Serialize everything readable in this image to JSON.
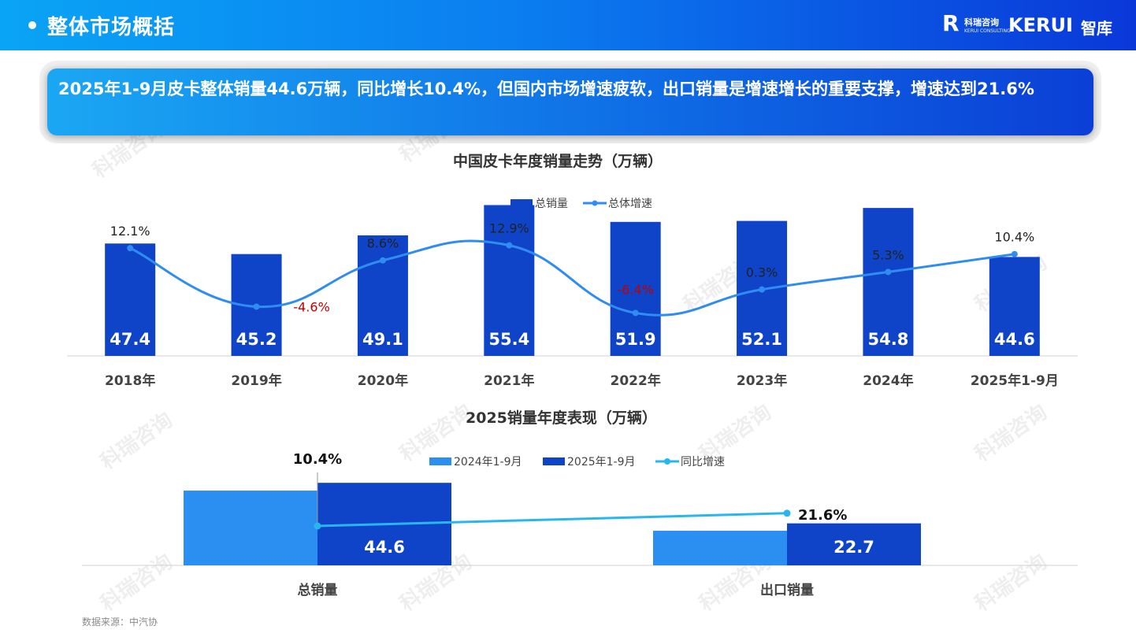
{
  "header": {
    "title": "整体市场概括"
  },
  "logo": {
    "cn": "科瑞咨询",
    "en": "KERUI CONSULTING",
    "brand": "KERUI",
    "suffix": "智库"
  },
  "banner": {
    "text": "2025年1-9月皮卡整体销量44.6万辆，同比增长10.4%，但国内市场增速疲软，出口销量是增速增长的重要支撑，增速达到21.6%"
  },
  "watermark": "科瑞咨询",
  "source": "数据来源：中汽协",
  "colors": {
    "bar_dark": "#0f44c8",
    "bar_light": "#2b8ff2",
    "line_blue": "#2f8cf0",
    "line_cyan": "#29b6ee",
    "negative": "#c00000"
  },
  "chart_data": [
    {
      "type": "bar",
      "title": "中国皮卡年度销量走势（万辆）",
      "categories": [
        "2018年",
        "2019年",
        "2020年",
        "2021年",
        "2022年",
        "2023年",
        "2024年",
        "2025年1-9月"
      ],
      "series": [
        {
          "name": "总销量",
          "kind": "bar",
          "values": [
            47.4,
            45.2,
            49.1,
            55.4,
            51.9,
            52.1,
            54.8,
            44.6
          ]
        },
        {
          "name": "总体增速",
          "kind": "line",
          "values": [
            12.1,
            -4.6,
            8.6,
            12.9,
            -6.4,
            0.3,
            5.3,
            10.4
          ],
          "labels": [
            "12.1%",
            "-4.6%",
            "8.6%",
            "12.9%",
            "-6.4%",
            "0.3%",
            "5.3%",
            "10.4%"
          ]
        }
      ],
      "legend": "top-center"
    },
    {
      "type": "bar",
      "title": "2025销量年度表现（万辆）",
      "categories": [
        "总销量",
        "出口销量"
      ],
      "series": [
        {
          "name": "2024年1-9月",
          "kind": "bar",
          "values": [
            40.4,
            18.7
          ]
        },
        {
          "name": "2025年1-9月",
          "kind": "bar",
          "values": [
            44.6,
            22.7
          ],
          "labels": [
            "44.6",
            "22.7"
          ]
        },
        {
          "name": "同比增速",
          "kind": "line",
          "values": [
            10.4,
            21.6
          ],
          "labels": [
            "10.4%",
            "21.6%"
          ]
        }
      ],
      "legend": "top-center"
    }
  ]
}
